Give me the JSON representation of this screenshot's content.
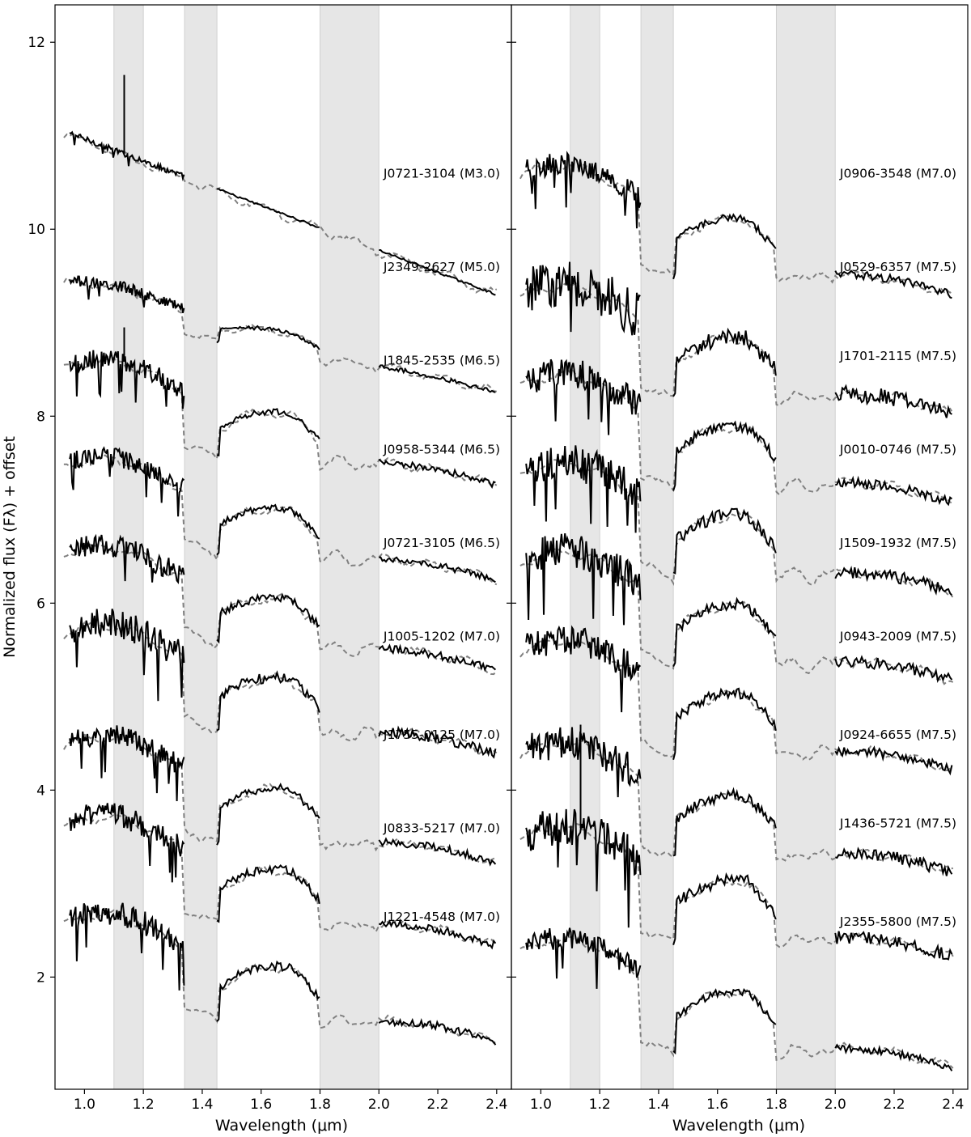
{
  "chart_data": {
    "type": "line",
    "ylabel": "Normalized flux (Fλ) + offset",
    "ylim": [
      0.8,
      12.4
    ],
    "yticks": [
      2,
      4,
      6,
      8,
      10,
      12
    ],
    "shaded_regions_um": [
      [
        1.1,
        1.2
      ],
      [
        1.34,
        1.45
      ],
      [
        1.8,
        2.0
      ]
    ],
    "line_styles": {
      "observed": "solid black",
      "model": "dashed gray"
    },
    "panels": [
      {
        "id": "left",
        "xlabel": "Wavelength (μm)",
        "xlim": [
          0.9,
          2.45
        ],
        "xticks": [
          1.0,
          1.2,
          1.4,
          1.6,
          1.8,
          2.0,
          2.2,
          2.4
        ],
        "spectra": [
          {
            "label": "J0721-3104 (M3.0)",
            "offset": 9.3,
            "start_flux": 11.05,
            "type_shape": 0.0,
            "h2o_dip": 0.2,
            "noise": 0.03,
            "spike": [
              1.135,
              11.65
            ]
          },
          {
            "label": "J2349-2627 (M5.0)",
            "offset": 8.3,
            "start_flux": 9.45,
            "type_shape": 0.3,
            "h2o_dip": 0.3,
            "noise": 0.06
          },
          {
            "label": "J1845-2535 (M6.5)",
            "offset": 7.3,
            "start_flux": 8.55,
            "type_shape": 0.7,
            "h2o_dip": 0.4,
            "noise": 0.1,
            "spike": [
              1.135,
              8.95
            ]
          },
          {
            "label": "J0958-5344 (M6.5)",
            "offset": 6.35,
            "start_flux": 7.5,
            "type_shape": 0.7,
            "h2o_dip": 0.4,
            "noise": 0.1
          },
          {
            "label": "J0721-3105 (M6.5)",
            "offset": 5.35,
            "start_flux": 6.55,
            "type_shape": 0.7,
            "h2o_dip": 0.4,
            "noise": 0.12
          },
          {
            "label": "J1005-1202 (M7.0)",
            "offset": 4.35,
            "start_flux": 5.7,
            "type_shape": 0.8,
            "h2o_dip": 0.45,
            "noise": 0.16
          },
          {
            "label": "J1755-0125 (M7.0)",
            "offset": 3.3,
            "start_flux": 4.5,
            "type_shape": 0.8,
            "h2o_dip": 0.45,
            "noise": 0.12
          },
          {
            "label": "J0833-5217 (M7.0)",
            "offset": 2.3,
            "start_flux": 3.65,
            "type_shape": 0.8,
            "h2o_dip": 0.45,
            "noise": 0.13
          },
          {
            "label": "J1221-4548 (M7.0)",
            "offset": 1.35,
            "start_flux": 2.6,
            "type_shape": 0.8,
            "h2o_dip": 0.45,
            "noise": 0.13
          }
        ]
      },
      {
        "id": "right",
        "xlabel": "Wavelength (μm)",
        "xlim": [
          0.9,
          2.45
        ],
        "xticks": [
          1.0,
          1.2,
          1.4,
          1.6,
          1.8,
          2.0,
          2.2,
          2.4
        ],
        "spectra": [
          {
            "label": "J0906-3548 (M7.0)",
            "offset": 9.3,
            "start_flux": 10.6,
            "type_shape": 0.85,
            "h2o_dip": 0.5,
            "noise": 0.12
          },
          {
            "label": "J0529-6357 (M7.5)",
            "offset": 8.3,
            "start_flux": 9.3,
            "type_shape": 0.9,
            "h2o_dip": 0.55,
            "noise": 0.25
          },
          {
            "label": "J1701-2115 (M7.5)",
            "offset": 7.35,
            "start_flux": 8.35,
            "type_shape": 0.9,
            "h2o_dip": 0.55,
            "noise": 0.16
          },
          {
            "label": "J0010-0746 (M7.5)",
            "offset": 6.35,
            "start_flux": 7.4,
            "type_shape": 0.9,
            "h2o_dip": 0.55,
            "noise": 0.2
          },
          {
            "label": "J1509-1932 (M7.5)",
            "offset": 5.35,
            "start_flux": 6.45,
            "type_shape": 0.9,
            "h2o_dip": 0.55,
            "noise": 0.18
          },
          {
            "label": "J0943-2009 (M7.5)",
            "offset": 4.35,
            "start_flux": 5.5,
            "type_shape": 0.9,
            "h2o_dip": 0.55,
            "noise": 0.16
          },
          {
            "label": "J0924-6655 (M7.5)",
            "offset": 3.3,
            "start_flux": 4.4,
            "type_shape": 0.9,
            "h2o_dip": 0.55,
            "noise": 0.18
          },
          {
            "label": "J1436-5721 (M7.5)",
            "offset": 2.35,
            "start_flux": 3.5,
            "type_shape": 0.9,
            "h2o_dip": 0.55,
            "noise": 0.2,
            "spike": [
              1.135,
              4.7
            ]
          },
          {
            "label": "J2355-5800 (M7.5)",
            "offset": 1.3,
            "start_flux": 2.3,
            "type_shape": 0.9,
            "h2o_dip": 0.55,
            "noise": 0.12
          }
        ]
      }
    ]
  }
}
